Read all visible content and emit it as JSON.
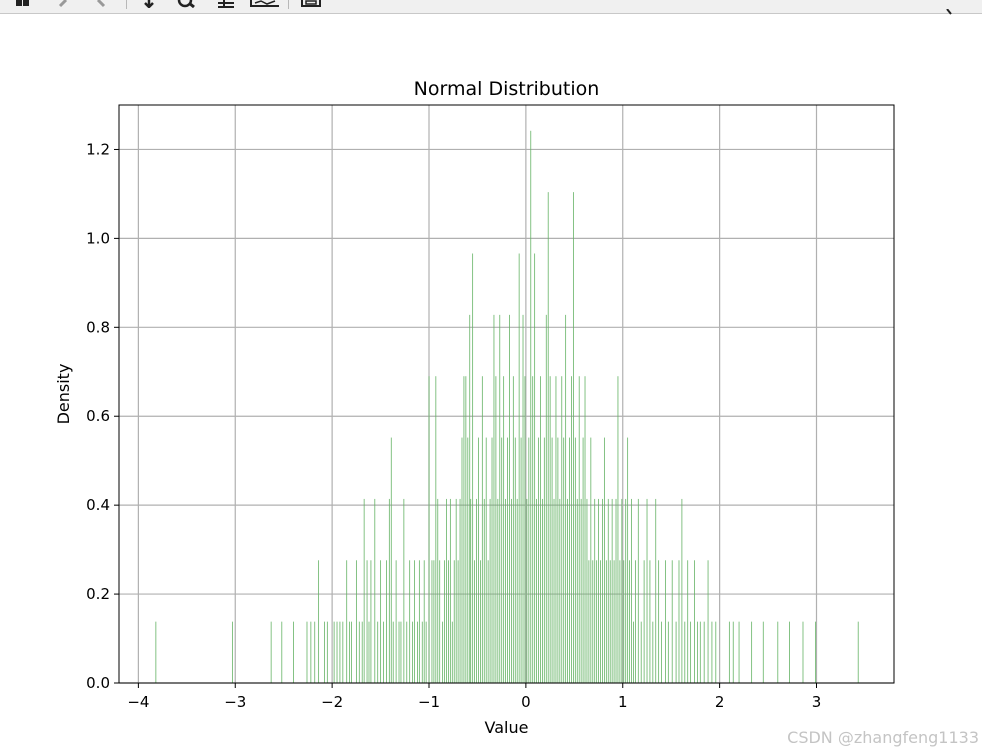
{
  "toolbar": {
    "buttons": [
      {
        "name": "home-icon"
      },
      {
        "name": "back-icon"
      },
      {
        "name": "forward-icon"
      },
      {
        "name": "pan-icon"
      },
      {
        "name": "zoom-icon"
      },
      {
        "name": "subplots-icon"
      },
      {
        "name": "edit-axis-icon"
      },
      {
        "name": "save-icon"
      }
    ]
  },
  "watermark": "CSDN @zhangfeng1133",
  "chart_data": {
    "type": "bar",
    "title": "Normal Distribution",
    "xlabel": "Value",
    "ylabel": "Density",
    "xlim": [
      -4.2,
      3.8
    ],
    "ylim": [
      0,
      1.3
    ],
    "xticks": [
      -4,
      -3,
      -2,
      -1,
      0,
      1,
      2,
      3
    ],
    "xtick_labels": [
      "−4",
      "−3",
      "−2",
      "−1",
      "0",
      "1",
      "2",
      "3"
    ],
    "yticks": [
      0.0,
      0.2,
      0.4,
      0.6,
      0.8,
      1.0,
      1.2
    ],
    "ytick_labels": [
      "0.0",
      "0.2",
      "0.4",
      "0.6",
      "0.8",
      "1.0",
      "1.2"
    ],
    "grid": true,
    "bar_color": "#66b366",
    "bin_width": 0.0072,
    "bins": [
      [
        -3.82,
        0.138
      ],
      [
        -3.03,
        0.138
      ],
      [
        -2.63,
        0.138
      ],
      [
        -2.52,
        0.138
      ],
      [
        -2.4,
        0.138
      ],
      [
        -2.26,
        0.138
      ],
      [
        -2.22,
        0.138
      ],
      [
        -2.18,
        0.138
      ],
      [
        -2.14,
        0.276
      ],
      [
        -2.08,
        0.138
      ],
      [
        -2.05,
        0.138
      ],
      [
        -1.98,
        0.138
      ],
      [
        -1.95,
        0.138
      ],
      [
        -1.92,
        0.138
      ],
      [
        -1.89,
        0.138
      ],
      [
        -1.85,
        0.276
      ],
      [
        -1.82,
        0.138
      ],
      [
        -1.8,
        0.138
      ],
      [
        -1.75,
        0.276
      ],
      [
        -1.72,
        0.138
      ],
      [
        -1.69,
        0.138
      ],
      [
        -1.67,
        0.414
      ],
      [
        -1.64,
        0.276
      ],
      [
        -1.62,
        0.138
      ],
      [
        -1.6,
        0.276
      ],
      [
        -1.56,
        0.414
      ],
      [
        -1.53,
        0.138
      ],
      [
        -1.5,
        0.276
      ],
      [
        -1.47,
        0.138
      ],
      [
        -1.44,
        0.276
      ],
      [
        -1.41,
        0.414
      ],
      [
        -1.39,
        0.552
      ],
      [
        -1.37,
        0.138
      ],
      [
        -1.34,
        0.276
      ],
      [
        -1.31,
        0.138
      ],
      [
        -1.29,
        0.138
      ],
      [
        -1.26,
        0.414
      ],
      [
        -1.23,
        0.138
      ],
      [
        -1.2,
        0.276
      ],
      [
        -1.17,
        0.138
      ],
      [
        -1.15,
        0.276
      ],
      [
        -1.12,
        0.138
      ],
      [
        -1.1,
        0.276
      ],
      [
        -1.07,
        0.138
      ],
      [
        -1.05,
        0.276
      ],
      [
        -1.03,
        0.138
      ],
      [
        -1.0,
        0.69
      ],
      [
        -0.97,
        0.276
      ],
      [
        -0.95,
        0.276
      ],
      [
        -0.93,
        0.69
      ],
      [
        -0.91,
        0.414
      ],
      [
        -0.89,
        0.276
      ],
      [
        -0.86,
        0.138
      ],
      [
        -0.84,
        0.276
      ],
      [
        -0.82,
        0.414
      ],
      [
        -0.8,
        0.276
      ],
      [
        -0.78,
        0.414
      ],
      [
        -0.76,
        0.138
      ],
      [
        -0.74,
        0.276
      ],
      [
        -0.72,
        0.414
      ],
      [
        -0.7,
        0.276
      ],
      [
        -0.68,
        0.414
      ],
      [
        -0.66,
        0.552
      ],
      [
        -0.64,
        0.69
      ],
      [
        -0.62,
        0.69
      ],
      [
        -0.6,
        0.552
      ],
      [
        -0.58,
        0.828
      ],
      [
        -0.57,
        0.414
      ],
      [
        -0.55,
        0.966
      ],
      [
        -0.53,
        0.276
      ],
      [
        -0.51,
        0.414
      ],
      [
        -0.49,
        0.552
      ],
      [
        -0.47,
        0.276
      ],
      [
        -0.45,
        0.69
      ],
      [
        -0.43,
        0.414
      ],
      [
        -0.41,
        0.552
      ],
      [
        -0.39,
        0.276
      ],
      [
        -0.37,
        0.414
      ],
      [
        -0.35,
        0.552
      ],
      [
        -0.33,
        0.828
      ],
      [
        -0.31,
        0.69
      ],
      [
        -0.29,
        0.414
      ],
      [
        -0.27,
        0.828
      ],
      [
        -0.25,
        0.552
      ],
      [
        -0.23,
        0.69
      ],
      [
        -0.21,
        0.414
      ],
      [
        -0.19,
        0.552
      ],
      [
        -0.17,
        0.828
      ],
      [
        -0.15,
        0.414
      ],
      [
        -0.13,
        0.69
      ],
      [
        -0.11,
        0.552
      ],
      [
        -0.09,
        0.414
      ],
      [
        -0.07,
        0.966
      ],
      [
        -0.05,
        0.552
      ],
      [
        -0.03,
        0.828
      ],
      [
        -0.01,
        0.69
      ],
      [
        0.01,
        0.414
      ],
      [
        0.03,
        0.552
      ],
      [
        0.05,
        1.242
      ],
      [
        0.07,
        0.69
      ],
      [
        0.09,
        0.966
      ],
      [
        0.11,
        0.414
      ],
      [
        0.13,
        0.552
      ],
      [
        0.15,
        0.69
      ],
      [
        0.17,
        0.414
      ],
      [
        0.19,
        0.552
      ],
      [
        0.21,
        0.828
      ],
      [
        0.23,
        1.104
      ],
      [
        0.25,
        0.69
      ],
      [
        0.27,
        0.552
      ],
      [
        0.29,
        0.414
      ],
      [
        0.31,
        0.69
      ],
      [
        0.33,
        0.552
      ],
      [
        0.35,
        0.414
      ],
      [
        0.37,
        0.69
      ],
      [
        0.39,
        0.552
      ],
      [
        0.41,
        0.828
      ],
      [
        0.43,
        0.414
      ],
      [
        0.45,
        0.552
      ],
      [
        0.47,
        0.69
      ],
      [
        0.49,
        1.104
      ],
      [
        0.51,
        0.552
      ],
      [
        0.53,
        0.414
      ],
      [
        0.55,
        0.69
      ],
      [
        0.57,
        0.414
      ],
      [
        0.59,
        0.552
      ],
      [
        0.61,
        0.69
      ],
      [
        0.63,
        0.414
      ],
      [
        0.65,
        0.276
      ],
      [
        0.67,
        0.552
      ],
      [
        0.69,
        0.276
      ],
      [
        0.71,
        0.414
      ],
      [
        0.73,
        0.276
      ],
      [
        0.75,
        0.414
      ],
      [
        0.77,
        0.276
      ],
      [
        0.79,
        0.414
      ],
      [
        0.81,
        0.552
      ],
      [
        0.83,
        0.276
      ],
      [
        0.85,
        0.414
      ],
      [
        0.87,
        0.276
      ],
      [
        0.89,
        0.414
      ],
      [
        0.91,
        0.276
      ],
      [
        0.93,
        0.414
      ],
      [
        0.95,
        0.69
      ],
      [
        0.97,
        0.276
      ],
      [
        0.99,
        0.414
      ],
      [
        1.01,
        0.276
      ],
      [
        1.03,
        0.414
      ],
      [
        1.05,
        0.552
      ],
      [
        1.07,
        0.276
      ],
      [
        1.09,
        0.414
      ],
      [
        1.11,
        0.138
      ],
      [
        1.13,
        0.276
      ],
      [
        1.16,
        0.414
      ],
      [
        1.19,
        0.138
      ],
      [
        1.22,
        0.276
      ],
      [
        1.25,
        0.414
      ],
      [
        1.28,
        0.276
      ],
      [
        1.31,
        0.138
      ],
      [
        1.34,
        0.414
      ],
      [
        1.37,
        0.276
      ],
      [
        1.4,
        0.138
      ],
      [
        1.44,
        0.276
      ],
      [
        1.47,
        0.138
      ],
      [
        1.51,
        0.276
      ],
      [
        1.55,
        0.138
      ],
      [
        1.58,
        0.276
      ],
      [
        1.61,
        0.414
      ],
      [
        1.64,
        0.138
      ],
      [
        1.67,
        0.276
      ],
      [
        1.7,
        0.138
      ],
      [
        1.74,
        0.276
      ],
      [
        1.77,
        0.138
      ],
      [
        1.8,
        0.138
      ],
      [
        1.84,
        0.138
      ],
      [
        1.88,
        0.276
      ],
      [
        1.92,
        0.138
      ],
      [
        1.96,
        0.138
      ],
      [
        2.1,
        0.138
      ],
      [
        2.14,
        0.138
      ],
      [
        2.2,
        0.138
      ],
      [
        2.33,
        0.138
      ],
      [
        2.45,
        0.138
      ],
      [
        2.6,
        0.138
      ],
      [
        2.72,
        0.138
      ],
      [
        2.86,
        0.138
      ],
      [
        2.99,
        0.138
      ],
      [
        3.43,
        0.138
      ]
    ]
  }
}
